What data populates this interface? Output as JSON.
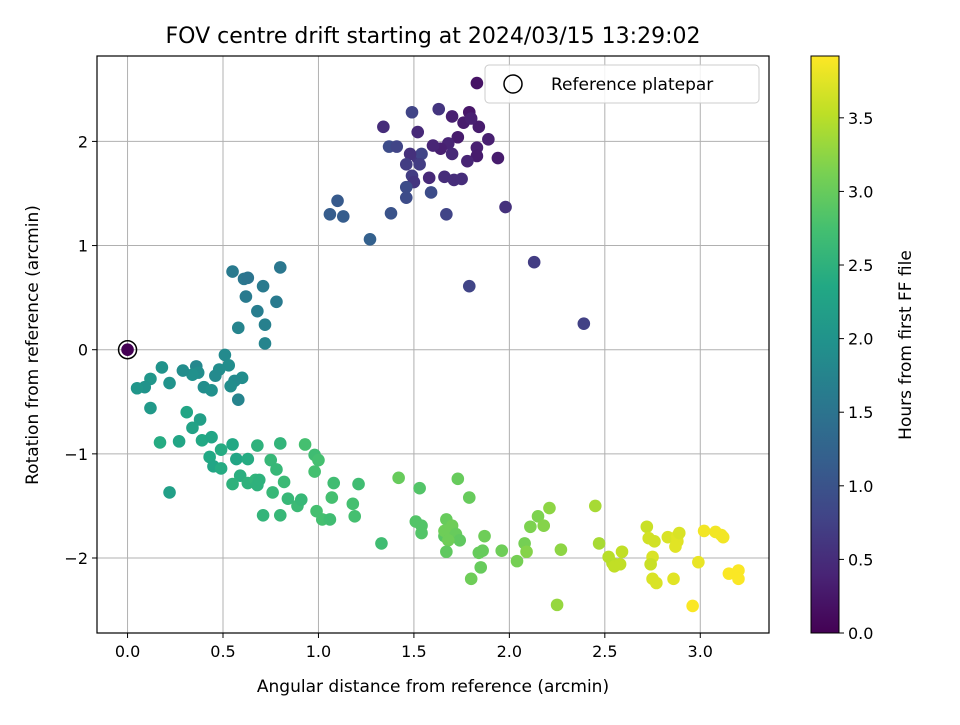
{
  "chart_data": {
    "type": "scatter",
    "title": "FOV centre drift starting at 2024/03/15 13:29:02",
    "xlabel": "Angular distance from reference (arcmin)",
    "ylabel": "Rotation from reference (arcmin)",
    "xlim": [
      -0.16,
      3.36
    ],
    "ylim": [
      -2.72,
      2.82
    ],
    "xticks": [
      0.0,
      0.5,
      1.0,
      1.5,
      2.0,
      2.5,
      3.0
    ],
    "xtick_labels": [
      "0.0",
      "0.5",
      "1.0",
      "1.5",
      "2.0",
      "2.5",
      "3.0"
    ],
    "yticks": [
      -2,
      -1,
      0,
      1,
      2
    ],
    "ytick_labels": [
      "−2",
      "−1",
      "0",
      "1",
      "2"
    ],
    "grid": true,
    "legend": {
      "placement": "top-right",
      "entries": [
        "Reference platepar"
      ]
    },
    "reference_point": {
      "x": 0.0,
      "y": 0.0
    },
    "colorbar": {
      "label": "Hours from first FF file",
      "colormap": "viridis",
      "range": [
        0.0,
        3.92
      ],
      "ticks": [
        0.0,
        0.5,
        1.0,
        1.5,
        2.0,
        2.5,
        3.0,
        3.5
      ],
      "tick_labels": [
        "0.0",
        "0.5",
        "1.0",
        "1.5",
        "2.0",
        "2.5",
        "3.0",
        "3.5"
      ]
    },
    "points": [
      {
        "x": 0.0,
        "y": 0.0,
        "c": 0.0
      },
      {
        "x": 1.83,
        "y": 2.56,
        "c": 0.2
      },
      {
        "x": 1.79,
        "y": 2.28,
        "c": 0.25
      },
      {
        "x": 1.76,
        "y": 2.18,
        "c": 0.3
      },
      {
        "x": 1.84,
        "y": 2.14,
        "c": 0.3
      },
      {
        "x": 1.7,
        "y": 2.24,
        "c": 0.35
      },
      {
        "x": 1.8,
        "y": 2.22,
        "c": 0.35
      },
      {
        "x": 1.63,
        "y": 2.31,
        "c": 0.6
      },
      {
        "x": 1.73,
        "y": 2.04,
        "c": 0.3
      },
      {
        "x": 1.89,
        "y": 2.02,
        "c": 0.35
      },
      {
        "x": 1.68,
        "y": 1.98,
        "c": 0.4
      },
      {
        "x": 1.64,
        "y": 1.93,
        "c": 0.35
      },
      {
        "x": 1.6,
        "y": 1.96,
        "c": 0.4
      },
      {
        "x": 1.7,
        "y": 1.88,
        "c": 0.45
      },
      {
        "x": 1.83,
        "y": 1.94,
        "c": 0.35
      },
      {
        "x": 1.83,
        "y": 1.86,
        "c": 0.3
      },
      {
        "x": 1.78,
        "y": 1.81,
        "c": 0.4
      },
      {
        "x": 1.94,
        "y": 1.84,
        "c": 0.3
      },
      {
        "x": 1.49,
        "y": 2.28,
        "c": 0.8
      },
      {
        "x": 1.34,
        "y": 2.14,
        "c": 0.5
      },
      {
        "x": 1.52,
        "y": 2.09,
        "c": 0.45
      },
      {
        "x": 1.37,
        "y": 1.95,
        "c": 0.9
      },
      {
        "x": 1.41,
        "y": 1.95,
        "c": 0.8
      },
      {
        "x": 1.52,
        "y": 1.84,
        "c": 0.6
      },
      {
        "x": 1.54,
        "y": 1.88,
        "c": 0.8
      },
      {
        "x": 1.48,
        "y": 1.88,
        "c": 0.55
      },
      {
        "x": 1.46,
        "y": 1.78,
        "c": 0.7
      },
      {
        "x": 1.53,
        "y": 1.78,
        "c": 0.7
      },
      {
        "x": 1.58,
        "y": 1.65,
        "c": 0.45
      },
      {
        "x": 1.49,
        "y": 1.67,
        "c": 0.7
      },
      {
        "x": 1.66,
        "y": 1.66,
        "c": 0.5
      },
      {
        "x": 1.71,
        "y": 1.63,
        "c": 0.5
      },
      {
        "x": 1.75,
        "y": 1.64,
        "c": 0.5
      },
      {
        "x": 1.5,
        "y": 1.61,
        "c": 0.6
      },
      {
        "x": 1.46,
        "y": 1.56,
        "c": 0.9
      },
      {
        "x": 1.59,
        "y": 1.51,
        "c": 0.9
      },
      {
        "x": 1.46,
        "y": 1.46,
        "c": 0.9
      },
      {
        "x": 1.98,
        "y": 1.37,
        "c": 0.55
      },
      {
        "x": 1.67,
        "y": 1.3,
        "c": 0.8
      },
      {
        "x": 1.38,
        "y": 1.31,
        "c": 1.0
      },
      {
        "x": 1.1,
        "y": 1.43,
        "c": 1.1
      },
      {
        "x": 1.06,
        "y": 1.3,
        "c": 1.15
      },
      {
        "x": 1.13,
        "y": 1.28,
        "c": 1.15
      },
      {
        "x": 1.27,
        "y": 1.06,
        "c": 1.2
      },
      {
        "x": 2.13,
        "y": 0.84,
        "c": 0.7
      },
      {
        "x": 1.79,
        "y": 0.61,
        "c": 0.8
      },
      {
        "x": 2.39,
        "y": 0.25,
        "c": 0.75
      },
      {
        "x": 0.55,
        "y": 0.75,
        "c": 1.6
      },
      {
        "x": 0.61,
        "y": 0.68,
        "c": 1.55
      },
      {
        "x": 0.63,
        "y": 0.69,
        "c": 1.5
      },
      {
        "x": 0.8,
        "y": 0.79,
        "c": 1.55
      },
      {
        "x": 0.71,
        "y": 0.61,
        "c": 1.6
      },
      {
        "x": 0.62,
        "y": 0.51,
        "c": 1.6
      },
      {
        "x": 0.78,
        "y": 0.46,
        "c": 1.6
      },
      {
        "x": 0.68,
        "y": 0.37,
        "c": 1.65
      },
      {
        "x": 0.58,
        "y": 0.21,
        "c": 1.75
      },
      {
        "x": 0.72,
        "y": 0.24,
        "c": 1.7
      },
      {
        "x": 0.72,
        "y": 0.06,
        "c": 1.75
      },
      {
        "x": 0.51,
        "y": -0.05,
        "c": 1.85
      },
      {
        "x": 0.53,
        "y": -0.15,
        "c": 1.9
      },
      {
        "x": 0.48,
        "y": -0.19,
        "c": 1.9
      },
      {
        "x": 0.46,
        "y": -0.25,
        "c": 1.85
      },
      {
        "x": 0.6,
        "y": -0.27,
        "c": 1.9
      },
      {
        "x": 0.56,
        "y": -0.3,
        "c": 1.85
      },
      {
        "x": 0.54,
        "y": -0.35,
        "c": 1.9
      },
      {
        "x": 0.4,
        "y": -0.36,
        "c": 1.9
      },
      {
        "x": 0.44,
        "y": -0.39,
        "c": 1.95
      },
      {
        "x": 0.58,
        "y": -0.48,
        "c": 1.75
      },
      {
        "x": 0.36,
        "y": -0.16,
        "c": 1.8
      },
      {
        "x": 0.37,
        "y": -0.22,
        "c": 1.9
      },
      {
        "x": 0.34,
        "y": -0.24,
        "c": 1.95
      },
      {
        "x": 0.29,
        "y": -0.2,
        "c": 1.9
      },
      {
        "x": 0.18,
        "y": -0.17,
        "c": 2.0
      },
      {
        "x": 0.22,
        "y": -0.32,
        "c": 2.0
      },
      {
        "x": 0.12,
        "y": -0.28,
        "c": 2.05
      },
      {
        "x": 0.09,
        "y": -0.36,
        "c": 2.0
      },
      {
        "x": 0.05,
        "y": -0.37,
        "c": 2.05
      },
      {
        "x": 0.12,
        "y": -0.56,
        "c": 2.1
      },
      {
        "x": 0.31,
        "y": -0.6,
        "c": 2.3
      },
      {
        "x": 0.38,
        "y": -0.67,
        "c": 2.2
      },
      {
        "x": 0.34,
        "y": -0.75,
        "c": 2.25
      },
      {
        "x": 0.17,
        "y": -0.89,
        "c": 2.4
      },
      {
        "x": 0.27,
        "y": -0.88,
        "c": 2.3
      },
      {
        "x": 0.39,
        "y": -0.87,
        "c": 2.35
      },
      {
        "x": 0.44,
        "y": -0.84,
        "c": 2.3
      },
      {
        "x": 0.49,
        "y": -0.96,
        "c": 2.4
      },
      {
        "x": 0.55,
        "y": -0.91,
        "c": 2.35
      },
      {
        "x": 0.43,
        "y": -1.03,
        "c": 2.35
      },
      {
        "x": 0.45,
        "y": -1.12,
        "c": 2.3
      },
      {
        "x": 0.49,
        "y": -1.14,
        "c": 2.4
      },
      {
        "x": 0.57,
        "y": -1.05,
        "c": 2.3
      },
      {
        "x": 0.63,
        "y": -1.05,
        "c": 2.4
      },
      {
        "x": 0.68,
        "y": -0.92,
        "c": 2.5
      },
      {
        "x": 0.8,
        "y": -0.9,
        "c": 2.55
      },
      {
        "x": 0.59,
        "y": -1.21,
        "c": 2.45
      },
      {
        "x": 0.55,
        "y": -1.29,
        "c": 2.5
      },
      {
        "x": 0.63,
        "y": -1.28,
        "c": 2.5
      },
      {
        "x": 0.67,
        "y": -1.25,
        "c": 2.55
      },
      {
        "x": 0.68,
        "y": -1.3,
        "c": 2.5
      },
      {
        "x": 0.69,
        "y": -1.25,
        "c": 2.5
      },
      {
        "x": 0.75,
        "y": -1.06,
        "c": 2.6
      },
      {
        "x": 0.78,
        "y": -1.15,
        "c": 2.6
      },
      {
        "x": 0.76,
        "y": -1.37,
        "c": 2.6
      },
      {
        "x": 0.82,
        "y": -1.27,
        "c": 2.65
      },
      {
        "x": 0.84,
        "y": -1.43,
        "c": 2.6
      },
      {
        "x": 0.71,
        "y": -1.59,
        "c": 2.55
      },
      {
        "x": 0.8,
        "y": -1.59,
        "c": 2.6
      },
      {
        "x": 0.89,
        "y": -1.5,
        "c": 2.65
      },
      {
        "x": 0.91,
        "y": -1.44,
        "c": 2.6
      },
      {
        "x": 0.22,
        "y": -1.37,
        "c": 2.2
      },
      {
        "x": 0.93,
        "y": -0.91,
        "c": 2.75
      },
      {
        "x": 0.98,
        "y": -1.01,
        "c": 2.7
      },
      {
        "x": 1.0,
        "y": -1.06,
        "c": 2.75
      },
      {
        "x": 0.98,
        "y": -1.17,
        "c": 2.75
      },
      {
        "x": 1.08,
        "y": -1.28,
        "c": 2.7
      },
      {
        "x": 1.07,
        "y": -1.42,
        "c": 2.75
      },
      {
        "x": 0.99,
        "y": -1.55,
        "c": 2.75
      },
      {
        "x": 1.02,
        "y": -1.63,
        "c": 2.75
      },
      {
        "x": 1.06,
        "y": -1.63,
        "c": 2.7
      },
      {
        "x": 1.18,
        "y": -1.48,
        "c": 2.75
      },
      {
        "x": 1.21,
        "y": -1.29,
        "c": 2.7
      },
      {
        "x": 1.19,
        "y": -1.6,
        "c": 2.75
      },
      {
        "x": 1.33,
        "y": -1.86,
        "c": 2.7
      },
      {
        "x": 1.42,
        "y": -1.23,
        "c": 3.0
      },
      {
        "x": 1.53,
        "y": -1.33,
        "c": 2.85
      },
      {
        "x": 1.73,
        "y": -1.24,
        "c": 3.0
      },
      {
        "x": 1.79,
        "y": -1.42,
        "c": 3.0
      },
      {
        "x": 1.51,
        "y": -1.65,
        "c": 2.85
      },
      {
        "x": 1.54,
        "y": -1.69,
        "c": 2.85
      },
      {
        "x": 1.54,
        "y": -1.76,
        "c": 2.85
      },
      {
        "x": 1.67,
        "y": -1.63,
        "c": 3.0
      },
      {
        "x": 1.7,
        "y": -1.69,
        "c": 3.05
      },
      {
        "x": 1.66,
        "y": -1.79,
        "c": 2.9
      },
      {
        "x": 1.66,
        "y": -1.74,
        "c": 3.05
      },
      {
        "x": 1.72,
        "y": -1.77,
        "c": 3.0
      },
      {
        "x": 1.74,
        "y": -1.83,
        "c": 2.95
      },
      {
        "x": 1.68,
        "y": -1.83,
        "c": 3.05
      },
      {
        "x": 1.67,
        "y": -1.94,
        "c": 2.95
      },
      {
        "x": 1.84,
        "y": -1.95,
        "c": 3.0
      },
      {
        "x": 1.87,
        "y": -1.79,
        "c": 3.05
      },
      {
        "x": 1.86,
        "y": -1.93,
        "c": 3.0
      },
      {
        "x": 1.85,
        "y": -2.09,
        "c": 3.0
      },
      {
        "x": 1.8,
        "y": -2.2,
        "c": 3.05
      },
      {
        "x": 1.96,
        "y": -1.93,
        "c": 3.05
      },
      {
        "x": 2.04,
        "y": -2.03,
        "c": 3.1
      },
      {
        "x": 2.08,
        "y": -1.86,
        "c": 3.1
      },
      {
        "x": 2.09,
        "y": -1.94,
        "c": 3.2
      },
      {
        "x": 2.11,
        "y": -1.7,
        "c": 3.15
      },
      {
        "x": 2.15,
        "y": -1.6,
        "c": 3.15
      },
      {
        "x": 2.18,
        "y": -1.69,
        "c": 3.2
      },
      {
        "x": 2.21,
        "y": -1.52,
        "c": 3.25
      },
      {
        "x": 2.27,
        "y": -1.92,
        "c": 3.25
      },
      {
        "x": 2.25,
        "y": -2.45,
        "c": 3.3
      },
      {
        "x": 2.45,
        "y": -1.5,
        "c": 3.4
      },
      {
        "x": 2.47,
        "y": -1.86,
        "c": 3.4
      },
      {
        "x": 2.52,
        "y": -1.99,
        "c": 3.5
      },
      {
        "x": 2.54,
        "y": -2.05,
        "c": 3.5
      },
      {
        "x": 2.55,
        "y": -2.08,
        "c": 3.55
      },
      {
        "x": 2.58,
        "y": -2.06,
        "c": 3.55
      },
      {
        "x": 2.59,
        "y": -1.94,
        "c": 3.55
      },
      {
        "x": 2.72,
        "y": -1.7,
        "c": 3.6
      },
      {
        "x": 2.73,
        "y": -1.81,
        "c": 3.65
      },
      {
        "x": 2.76,
        "y": -1.84,
        "c": 3.65
      },
      {
        "x": 2.75,
        "y": -1.99,
        "c": 3.7
      },
      {
        "x": 2.74,
        "y": -2.06,
        "c": 3.6
      },
      {
        "x": 2.75,
        "y": -2.2,
        "c": 3.7
      },
      {
        "x": 2.77,
        "y": -2.24,
        "c": 3.7
      },
      {
        "x": 2.83,
        "y": -1.8,
        "c": 3.7
      },
      {
        "x": 2.88,
        "y": -1.79,
        "c": 3.75
      },
      {
        "x": 2.88,
        "y": -1.84,
        "c": 3.75
      },
      {
        "x": 2.89,
        "y": -1.76,
        "c": 3.7
      },
      {
        "x": 2.87,
        "y": -1.89,
        "c": 3.75
      },
      {
        "x": 2.86,
        "y": -2.2,
        "c": 3.75
      },
      {
        "x": 2.96,
        "y": -2.46,
        "c": 3.9
      },
      {
        "x": 2.99,
        "y": -2.04,
        "c": 3.8
      },
      {
        "x": 3.02,
        "y": -1.74,
        "c": 3.85
      },
      {
        "x": 3.08,
        "y": -1.75,
        "c": 3.85
      },
      {
        "x": 3.11,
        "y": -1.78,
        "c": 3.85
      },
      {
        "x": 3.12,
        "y": -1.8,
        "c": 3.85
      },
      {
        "x": 3.15,
        "y": -2.15,
        "c": 3.9
      },
      {
        "x": 3.2,
        "y": -2.12,
        "c": 3.9
      },
      {
        "x": 3.2,
        "y": -2.2,
        "c": 3.9
      }
    ]
  }
}
